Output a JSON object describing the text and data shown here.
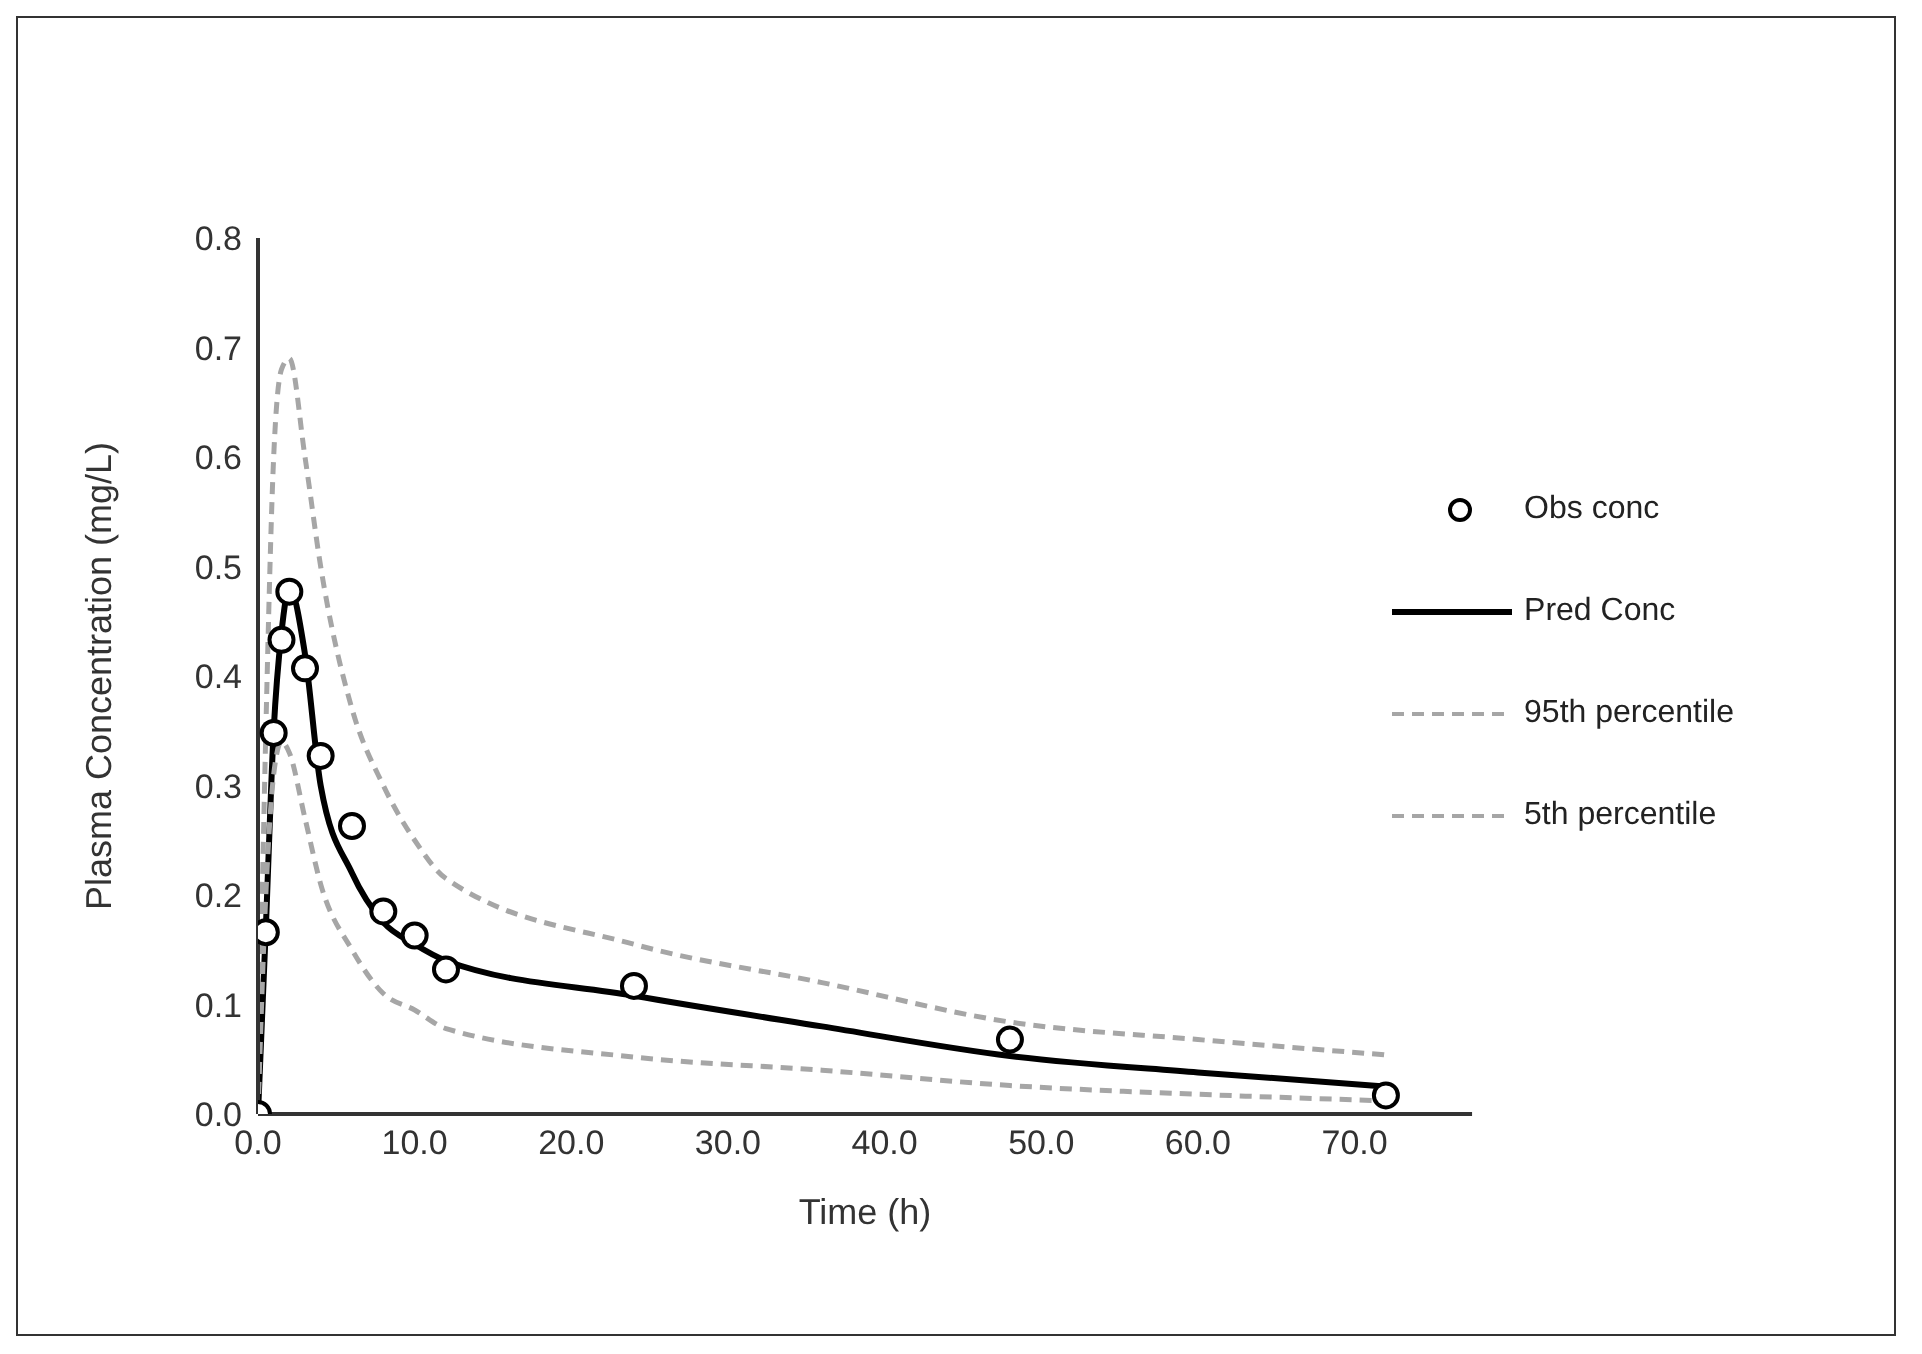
{
  "chart_data": {
    "type": "line",
    "xlabel": "Time (h)",
    "ylabel": "Plasma Concentration (mg/L)",
    "xlim": [
      0,
      77.5
    ],
    "xticks": [
      {
        "value": 0,
        "label": "0.0"
      },
      {
        "value": 10,
        "label": "10.0"
      },
      {
        "value": 20,
        "label": "20.0"
      },
      {
        "value": 30,
        "label": "30.0"
      },
      {
        "value": 40,
        "label": "40.0"
      },
      {
        "value": 50,
        "label": "50.0"
      },
      {
        "value": 60,
        "label": "60.0"
      },
      {
        "value": 70,
        "label": "70.0"
      }
    ],
    "ylim": [
      0,
      0.8
    ],
    "yticks": [
      {
        "value": 0,
        "label": "0.0"
      },
      {
        "value": 0.1,
        "label": "0.1"
      },
      {
        "value": 0.2,
        "label": "0.2"
      },
      {
        "value": 0.3,
        "label": "0.3"
      },
      {
        "value": 0.4,
        "label": "0.4"
      },
      {
        "value": 0.5,
        "label": "0.5"
      },
      {
        "value": 0.6,
        "label": "0.6"
      },
      {
        "value": 0.7,
        "label": "0.7"
      },
      {
        "value": 0.8,
        "label": "0.8"
      }
    ],
    "grid": false,
    "legend": "right",
    "series": [
      {
        "name": "Obs conc",
        "type": "scatter",
        "marker": "circle",
        "color": "#000000",
        "x": [
          0,
          0.5,
          1,
          1.5,
          2,
          3,
          4,
          6,
          8,
          10,
          12,
          24,
          48,
          72
        ],
        "values": [
          0,
          0.166,
          0.348,
          0.433,
          0.477,
          0.407,
          0.327,
          0.263,
          0.185,
          0.163,
          0.132,
          0.117,
          0.068,
          0.017
        ]
      },
      {
        "name": "Pred Conc",
        "line_style": "solid",
        "color": "#000000",
        "x": [
          0,
          0.5,
          1,
          1.5,
          2,
          3,
          4,
          6,
          8,
          10,
          12,
          24,
          36,
          48,
          60,
          72
        ],
        "values": [
          0,
          0.17,
          0.35,
          0.44,
          0.48,
          0.42,
          0.3,
          0.22,
          0.175,
          0.155,
          0.14,
          0.108,
          0.08,
          0.053,
          0.038,
          0.025
        ]
      },
      {
        "name": "95th percentile",
        "line_style": "dashed",
        "color": "#a6a6a6",
        "x": [
          0,
          0.5,
          1,
          1.5,
          2,
          3,
          4,
          6,
          8,
          10,
          12,
          24,
          36,
          48,
          60,
          72
        ],
        "values": [
          0,
          0.35,
          0.6,
          0.68,
          0.69,
          0.6,
          0.5,
          0.37,
          0.3,
          0.25,
          0.215,
          0.155,
          0.12,
          0.084,
          0.068,
          0.054
        ]
      },
      {
        "name": "5th percentile",
        "line_style": "dashed",
        "color": "#a6a6a6",
        "x": [
          0,
          0.5,
          1,
          1.5,
          2,
          3,
          4,
          6,
          8,
          10,
          12,
          24,
          36,
          48,
          60,
          72
        ],
        "values": [
          0,
          0.2,
          0.31,
          0.34,
          0.33,
          0.27,
          0.21,
          0.15,
          0.11,
          0.095,
          0.078,
          0.052,
          0.04,
          0.026,
          0.018,
          0.012
        ]
      }
    ]
  }
}
